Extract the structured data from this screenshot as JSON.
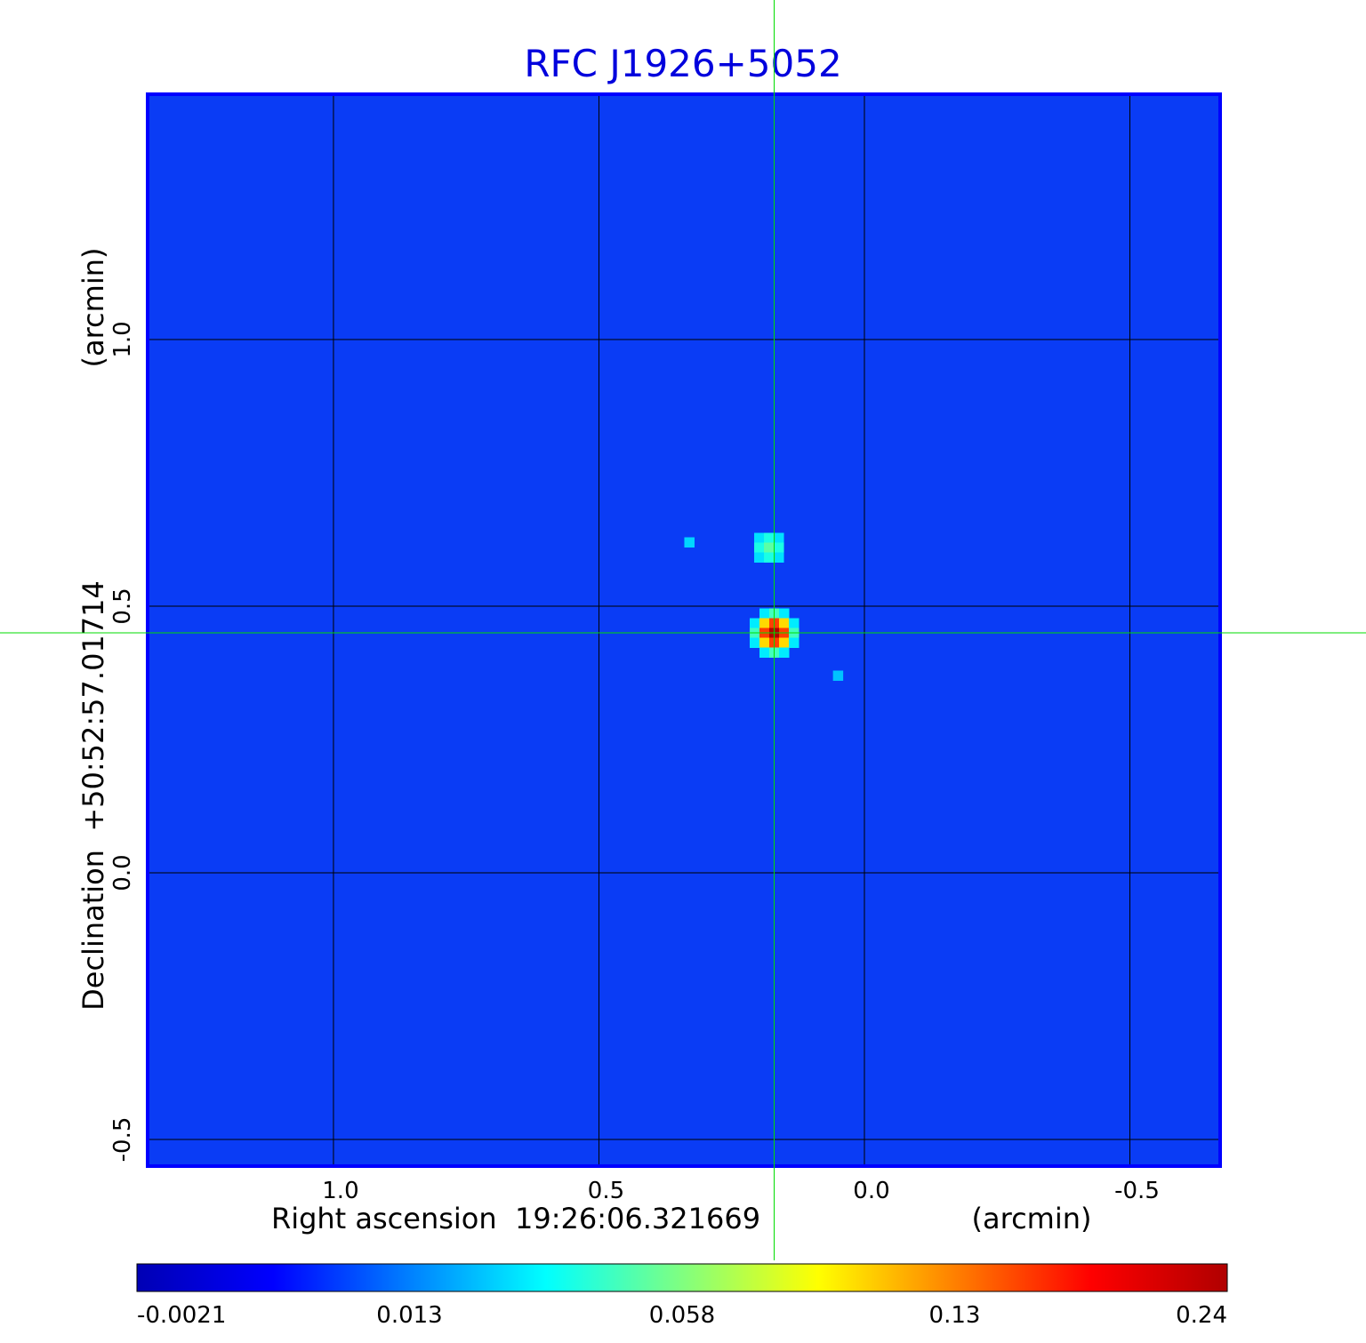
{
  "chart_data": {
    "type": "heatmap",
    "title": "RFC J1926+5052",
    "xlabel": "Right ascension  19:26:06.321669",
    "xunit": "(arcmin)",
    "ylabel": "Declination  +50:52:57.01714",
    "yunit": "(arcmin)",
    "x_range": [
      1.35,
      -0.67
    ],
    "y_range": [
      -0.55,
      1.46
    ],
    "x_ticks": [
      {
        "value": 1.0,
        "label": "1.0"
      },
      {
        "value": 0.5,
        "label": "0.5"
      },
      {
        "value": 0.0,
        "label": "0.0"
      },
      {
        "value": -0.5,
        "label": "-0.5"
      }
    ],
    "y_ticks": [
      {
        "value": 1.0,
        "label": "1.0"
      },
      {
        "value": 0.5,
        "label": "0.5"
      },
      {
        "value": 0.0,
        "label": "0.0"
      },
      {
        "value": -0.5,
        "label": "-0.5"
      }
    ],
    "grid": true,
    "crosshair": {
      "x": 0.17,
      "y": 0.45
    },
    "sources": [
      {
        "x": 0.17,
        "y": 0.45,
        "peak": 0.24
      },
      {
        "x": 0.18,
        "y": 0.61,
        "peak": 0.05
      },
      {
        "x": 0.33,
        "y": 0.62,
        "peak": 0.025
      },
      {
        "x": 0.05,
        "y": 0.37,
        "peak": 0.022
      }
    ],
    "colorbar": {
      "min": -0.0021,
      "max": 0.24,
      "ticks": [
        {
          "value": -0.0021,
          "label": "-0.0021"
        },
        {
          "value": 0.013,
          "label": "0.013"
        },
        {
          "value": 0.058,
          "label": "0.058"
        },
        {
          "value": 0.13,
          "label": "0.13"
        },
        {
          "value": 0.24,
          "label": "0.24"
        }
      ],
      "colors": [
        "#0000b4",
        "#0000ff",
        "#0080ff",
        "#00ffff",
        "#80ff80",
        "#ffff00",
        "#ff8000",
        "#ff0000",
        "#b00000"
      ]
    },
    "colors": {
      "title": "#0000dd",
      "frame": "#0000ff",
      "background": "#0a3cf5",
      "grid": "#000000",
      "crosshair": "#00dd00"
    }
  }
}
